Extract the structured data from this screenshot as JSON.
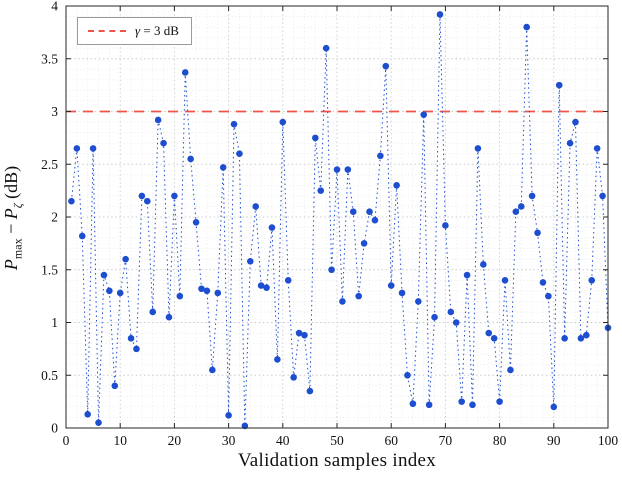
{
  "figure": {
    "xlabel": "Validation samples index",
    "ylabel": {
      "p1": "P",
      "sub1": "max",
      "dash": " − ",
      "p2": "P",
      "sub2": "ζ",
      "unit": "(dB)"
    },
    "legend": {
      "gamma": "γ",
      "rest": " = 3 dB"
    }
  },
  "chart_data": {
    "type": "scatter",
    "title": "",
    "xlabel": "Validation samples index",
    "ylabel": "Pmax − Pζ (dB)",
    "xlim": [
      0,
      100
    ],
    "ylim": [
      0,
      4
    ],
    "xticks": [
      0,
      10,
      20,
      30,
      40,
      50,
      60,
      70,
      80,
      90,
      100
    ],
    "yticks": [
      0,
      0.5,
      1,
      1.5,
      2,
      2.5,
      3,
      3.5,
      4
    ],
    "grid": "on-dotted-with-minor",
    "legend_position": "top-left",
    "legend_entries": [
      "γ = 3 dB"
    ],
    "threshold": 3,
    "threshold_color": "#f0534a",
    "point_color": "#1d4ecf",
    "line_style": "dotted",
    "x_start": 1,
    "x": [
      1,
      2,
      3,
      4,
      5,
      6,
      7,
      8,
      9,
      10,
      11,
      12,
      13,
      14,
      15,
      16,
      17,
      18,
      19,
      20,
      21,
      22,
      23,
      24,
      25,
      26,
      27,
      28,
      29,
      30,
      31,
      32,
      33,
      34,
      35,
      36,
      37,
      38,
      39,
      40,
      41,
      42,
      43,
      44,
      45,
      46,
      47,
      48,
      49,
      50,
      51,
      52,
      53,
      54,
      55,
      56,
      57,
      58,
      59,
      60,
      61,
      62,
      63,
      64,
      65,
      66,
      67,
      68,
      69,
      70,
      71,
      72,
      73,
      74,
      75,
      76,
      77,
      78,
      79,
      80,
      81,
      82,
      83,
      84,
      85,
      86,
      87,
      88,
      89,
      90,
      91,
      92,
      93,
      94,
      95,
      96,
      97,
      98,
      99,
      100
    ],
    "values": [
      2.15,
      2.65,
      1.82,
      0.13,
      2.65,
      0.05,
      1.45,
      1.3,
      0.4,
      1.28,
      1.6,
      0.85,
      0.75,
      2.2,
      2.15,
      1.1,
      2.92,
      2.7,
      1.05,
      2.2,
      1.25,
      3.37,
      2.55,
      1.95,
      1.32,
      1.3,
      0.55,
      1.28,
      2.47,
      0.12,
      2.88,
      2.6,
      0.02,
      1.58,
      2.1,
      1.35,
      1.33,
      1.9,
      0.65,
      2.9,
      1.4,
      0.48,
      0.9,
      0.88,
      0.35,
      2.75,
      2.25,
      3.6,
      1.5,
      2.45,
      1.2,
      2.45,
      2.05,
      1.25,
      1.75,
      2.05,
      1.97,
      2.58,
      3.43,
      1.35,
      2.3,
      1.28,
      0.5,
      0.23,
      1.2,
      2.97,
      0.22,
      1.05,
      3.92,
      1.92,
      1.1,
      1.0,
      0.25,
      1.45,
      0.22,
      2.65,
      1.55,
      0.9,
      0.85,
      0.25,
      1.4,
      0.55,
      2.05,
      2.1,
      3.8,
      2.2,
      1.85,
      1.38,
      1.25,
      0.2,
      3.25,
      0.85,
      2.7,
      2.9,
      0.85,
      0.88,
      1.4,
      2.65,
      2.2,
      0.95
    ]
  }
}
